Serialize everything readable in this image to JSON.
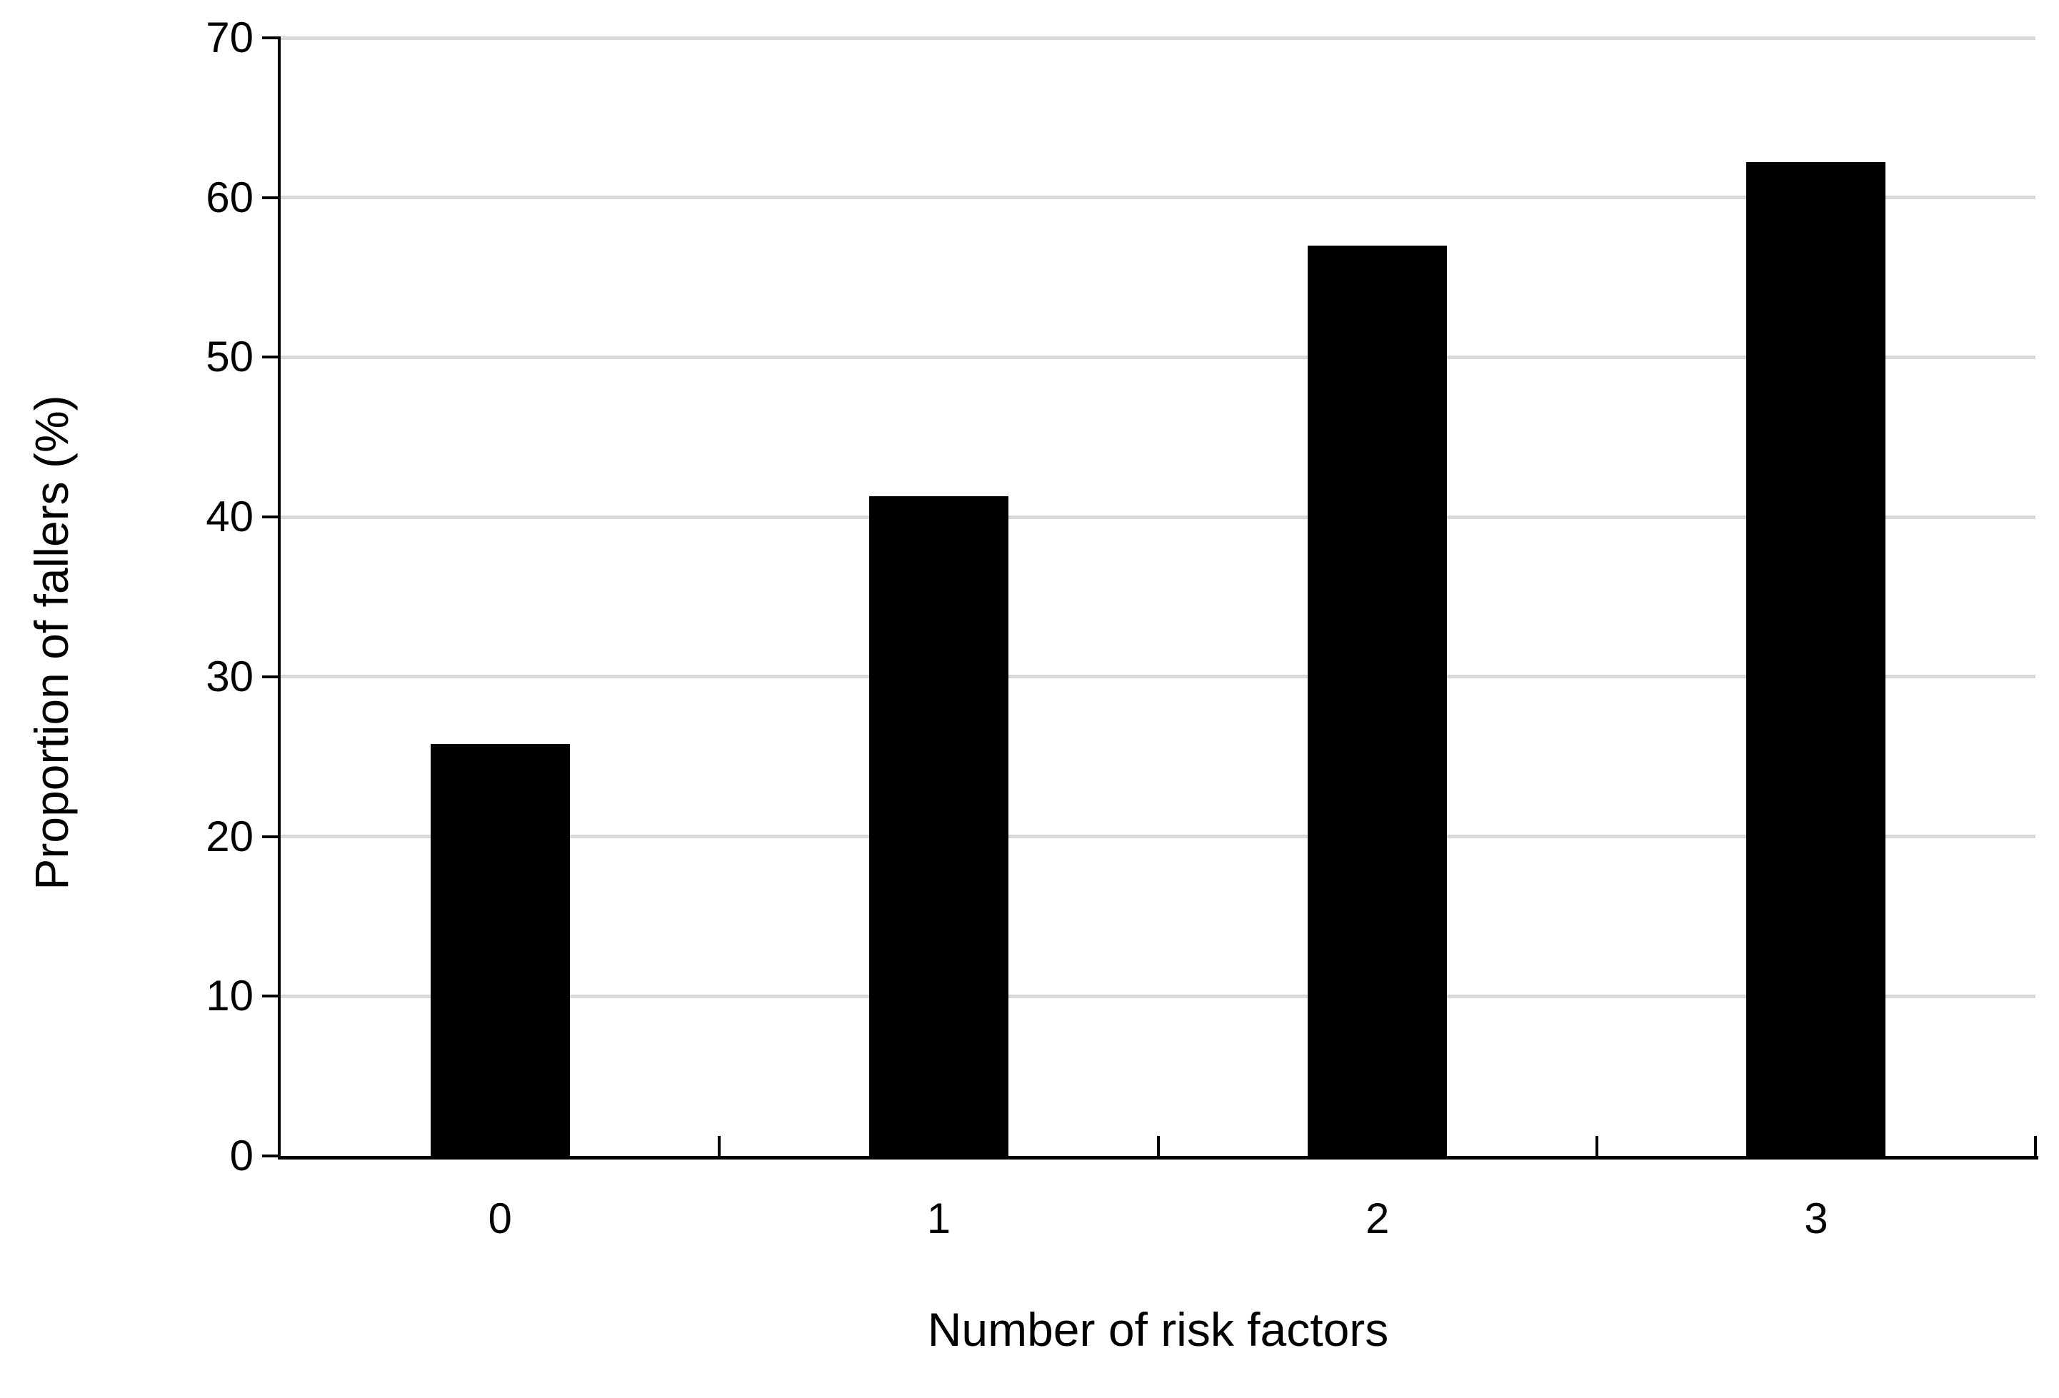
{
  "chart_data": {
    "type": "bar",
    "title": "",
    "xlabel": "Number of risk factors",
    "ylabel": "Proportion of fallers (%)",
    "categories": [
      "0",
      "1",
      "2",
      "3"
    ],
    "values": [
      25.8,
      41.3,
      57.0,
      62.2
    ],
    "ylim": [
      0,
      70
    ],
    "yticks": [
      0,
      10,
      20,
      30,
      40,
      50,
      60,
      70
    ],
    "grid": "horizontal",
    "legend": "none",
    "colors": {
      "bar": "#000000",
      "gridline": "#d9d9d9",
      "axis": "#000000",
      "text": "#000000",
      "background": "#ffffff"
    }
  }
}
